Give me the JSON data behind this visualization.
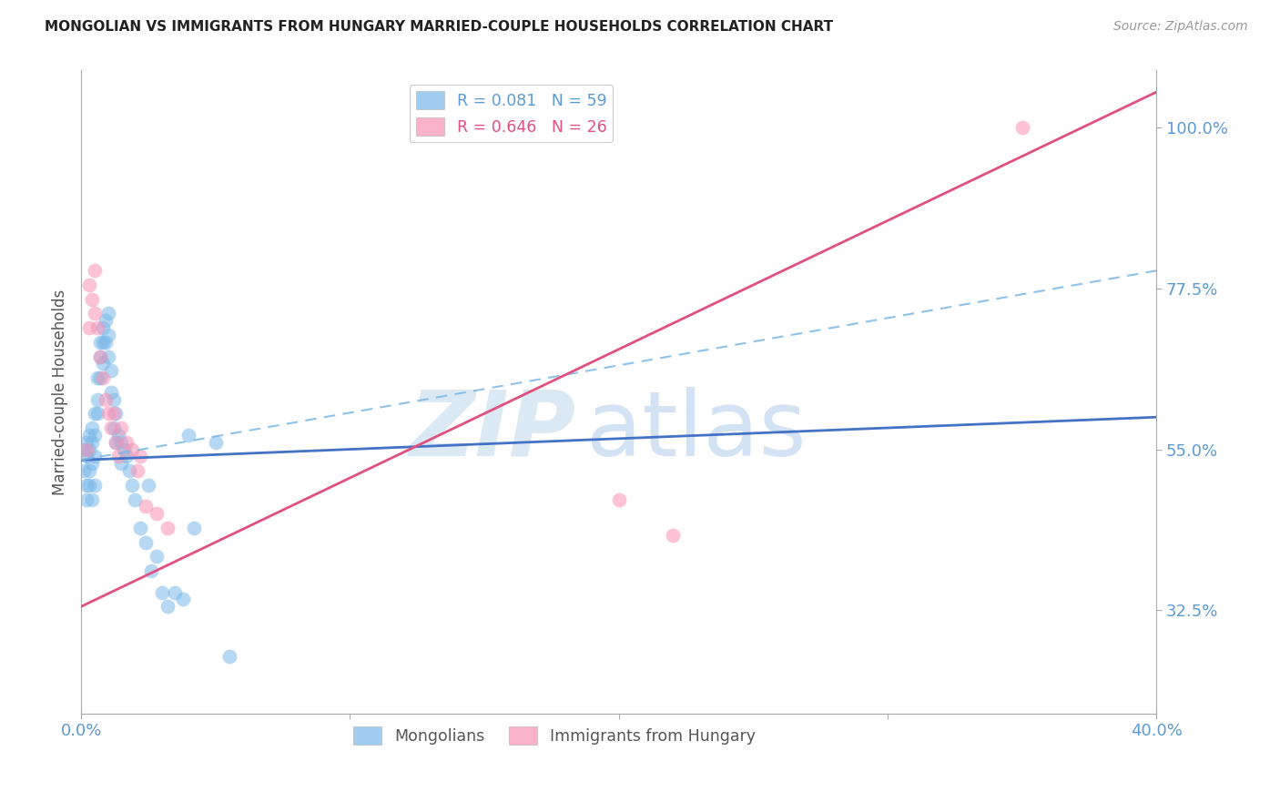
{
  "title": "MONGOLIAN VS IMMIGRANTS FROM HUNGARY MARRIED-COUPLE HOUSEHOLDS CORRELATION CHART",
  "source": "Source: ZipAtlas.com",
  "ylabel": "Married-couple Households",
  "ytick_labels": [
    "100.0%",
    "77.5%",
    "55.0%",
    "32.5%"
  ],
  "ytick_values": [
    1.0,
    0.775,
    0.55,
    0.325
  ],
  "xmin": 0.0,
  "xmax": 0.4,
  "ymin": 0.18,
  "ymax": 1.08,
  "legend_label1": "R = 0.081   N = 59",
  "legend_label2": "R = 0.646   N = 26",
  "mongolian_color": "#7ab8e8",
  "hungary_color": "#f892b4",
  "trend_blue_solid_color": "#4472c4",
  "trend_blue_dashed_color": "#7ab8e8",
  "trend_pink_color": "#e05080",
  "mongolian_x": [
    0.001,
    0.001,
    0.002,
    0.002,
    0.002,
    0.002,
    0.003,
    0.003,
    0.003,
    0.003,
    0.004,
    0.004,
    0.004,
    0.004,
    0.005,
    0.005,
    0.005,
    0.005,
    0.006,
    0.006,
    0.006,
    0.007,
    0.007,
    0.007,
    0.008,
    0.008,
    0.008,
    0.009,
    0.009,
    0.01,
    0.01,
    0.01,
    0.011,
    0.011,
    0.012,
    0.012,
    0.013,
    0.013,
    0.014,
    0.015,
    0.015,
    0.016,
    0.017,
    0.018,
    0.019,
    0.02,
    0.022,
    0.024,
    0.025,
    0.026,
    0.028,
    0.03,
    0.032,
    0.035,
    0.038,
    0.04,
    0.042,
    0.05,
    0.055
  ],
  "mongolian_y": [
    0.55,
    0.52,
    0.56,
    0.54,
    0.5,
    0.48,
    0.57,
    0.55,
    0.52,
    0.5,
    0.58,
    0.56,
    0.53,
    0.48,
    0.6,
    0.57,
    0.54,
    0.5,
    0.65,
    0.62,
    0.6,
    0.7,
    0.68,
    0.65,
    0.72,
    0.7,
    0.67,
    0.73,
    0.7,
    0.74,
    0.71,
    0.68,
    0.66,
    0.63,
    0.62,
    0.58,
    0.6,
    0.56,
    0.57,
    0.56,
    0.53,
    0.55,
    0.54,
    0.52,
    0.5,
    0.48,
    0.44,
    0.42,
    0.5,
    0.38,
    0.4,
    0.35,
    0.33,
    0.35,
    0.34,
    0.57,
    0.44,
    0.56,
    0.26
  ],
  "hungary_x": [
    0.002,
    0.003,
    0.003,
    0.004,
    0.005,
    0.005,
    0.006,
    0.007,
    0.008,
    0.009,
    0.01,
    0.011,
    0.012,
    0.013,
    0.014,
    0.015,
    0.017,
    0.019,
    0.021,
    0.022,
    0.024,
    0.028,
    0.032,
    0.2,
    0.22,
    0.35
  ],
  "hungary_y": [
    0.55,
    0.72,
    0.78,
    0.76,
    0.8,
    0.74,
    0.72,
    0.68,
    0.65,
    0.62,
    0.6,
    0.58,
    0.6,
    0.56,
    0.54,
    0.58,
    0.56,
    0.55,
    0.52,
    0.54,
    0.47,
    0.46,
    0.44,
    0.48,
    0.43,
    1.0
  ],
  "blue_trend_x": [
    0.0,
    0.4
  ],
  "blue_trend_y": [
    0.535,
    0.595
  ],
  "pink_trend_x": [
    0.0,
    0.4
  ],
  "pink_trend_y": [
    0.33,
    1.05
  ]
}
